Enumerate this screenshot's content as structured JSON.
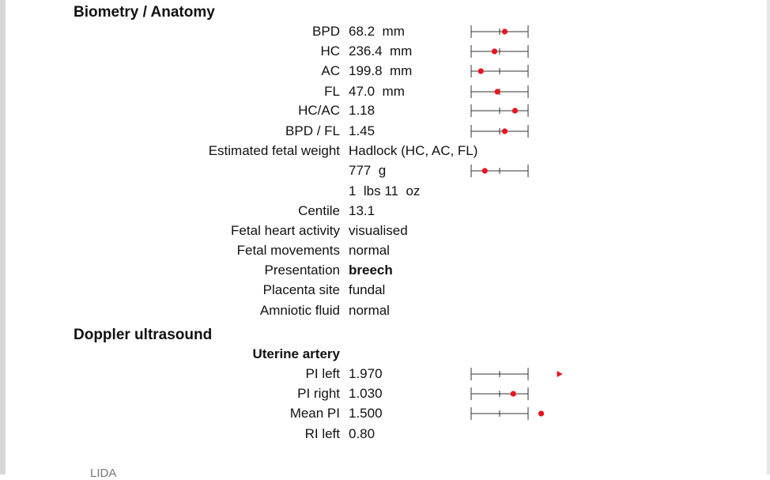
{
  "sections": {
    "biometry_title": "Biometry / Anatomy",
    "doppler_title": "Doppler ultrasound",
    "uterine_artery_label": "Uterine artery"
  },
  "biometry": {
    "bpd": {
      "label": "BPD",
      "value": "68.2  mm",
      "gauge_position": 0.59
    },
    "hc": {
      "label": "HC",
      "value": "236.4  mm",
      "gauge_position": 0.41
    },
    "ac": {
      "label": "AC",
      "value": "199.8  mm",
      "gauge_position": 0.17
    },
    "fl": {
      "label": "FL",
      "value": "47.0  mm",
      "gauge_position": 0.46
    },
    "hc_ac": {
      "label": "HC/AC",
      "value": "1.18",
      "gauge_position": 0.77
    },
    "bpd_fl": {
      "label": "BPD / FL",
      "value": "1.45",
      "gauge_position": 0.59
    },
    "efw": {
      "label": "Estimated fetal weight",
      "value": "Hadlock (HC, AC, FL)"
    },
    "efw_grams": {
      "value": "777  g",
      "gauge_position": 0.24
    },
    "efw_lbs": {
      "value": "1  lbs 11  oz"
    },
    "centile": {
      "label": "Centile",
      "value": "13.1"
    },
    "fetal_heart": {
      "label": "Fetal heart activity",
      "value": "visualised"
    },
    "fetal_movements": {
      "label": "Fetal movements",
      "value": "normal"
    },
    "presentation": {
      "label": "Presentation",
      "value": "breech"
    },
    "placenta": {
      "label": "Placenta site",
      "value": "fundal"
    },
    "amniotic": {
      "label": "Amniotic fluid",
      "value": "normal"
    }
  },
  "doppler": {
    "pi_left": {
      "label": "PI left",
      "value": "1.970",
      "marker": "arrow-right",
      "gauge_position": 1.55
    },
    "pi_right": {
      "label": "PI right",
      "value": "1.030",
      "gauge_position": 0.74
    },
    "mean_pi": {
      "label": "Mean PI",
      "value": "1.500",
      "gauge_position": 1.23
    },
    "ri_left": {
      "label": "RI left",
      "value": "0.80"
    }
  },
  "footer_partial": "LIDA",
  "colors": {
    "marker": "#e8141e",
    "gauge_line": "#333333"
  }
}
